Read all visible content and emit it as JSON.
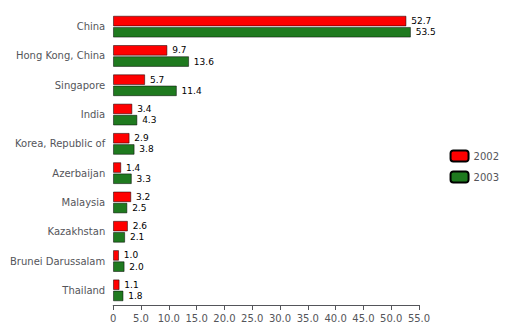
{
  "chart_data": {
    "type": "bar",
    "orientation": "horizontal",
    "categories": [
      "China",
      "Hong Kong, China",
      "Singapore",
      "India",
      "Korea, Republic of",
      "Azerbaijan",
      "Malaysia",
      "Kazakhstan",
      "Brunei Darussalam",
      "Thailand"
    ],
    "series": [
      {
        "name": "2002",
        "color": "#FF0000",
        "values": [
          52.7,
          9.7,
          5.7,
          3.4,
          2.9,
          1.4,
          3.2,
          2.6,
          1.0,
          1.1
        ],
        "value_labels": [
          "52.7",
          "9.7",
          "5.7",
          "3.4",
          "2.9",
          "1.4",
          "3.2",
          "2.6",
          "1.0",
          "1.1"
        ]
      },
      {
        "name": "2003",
        "color": "#1f7a1f",
        "values": [
          53.5,
          13.6,
          11.4,
          4.3,
          3.8,
          3.3,
          2.5,
          2.1,
          2.0,
          1.8
        ],
        "value_labels": [
          "53.5",
          "13.6",
          "11.4",
          "4.3",
          "3.8",
          "3.3",
          "2.5",
          "2.1",
          "2.0",
          "1.8"
        ]
      }
    ],
    "xlim": [
      0,
      55
    ],
    "xticks": [
      0,
      {
        "value": 5,
        "label": "5.0"
      },
      {
        "value": 10,
        "label": "10.0"
      },
      {
        "value": 15,
        "label": "15.0"
      },
      {
        "value": 20,
        "label": "20.0"
      },
      {
        "value": 25,
        "label": "25.0"
      },
      {
        "value": 30,
        "label": "30.0"
      },
      {
        "value": 35,
        "label": "35.0"
      },
      {
        "value": 40,
        "label": "40.0"
      },
      {
        "value": 45,
        "label": "45.0"
      },
      {
        "value": 50,
        "label": "50.0"
      },
      {
        "value": 55,
        "label": "55.0"
      }
    ],
    "data_labels": true,
    "legend": "right",
    "grid": false
  }
}
